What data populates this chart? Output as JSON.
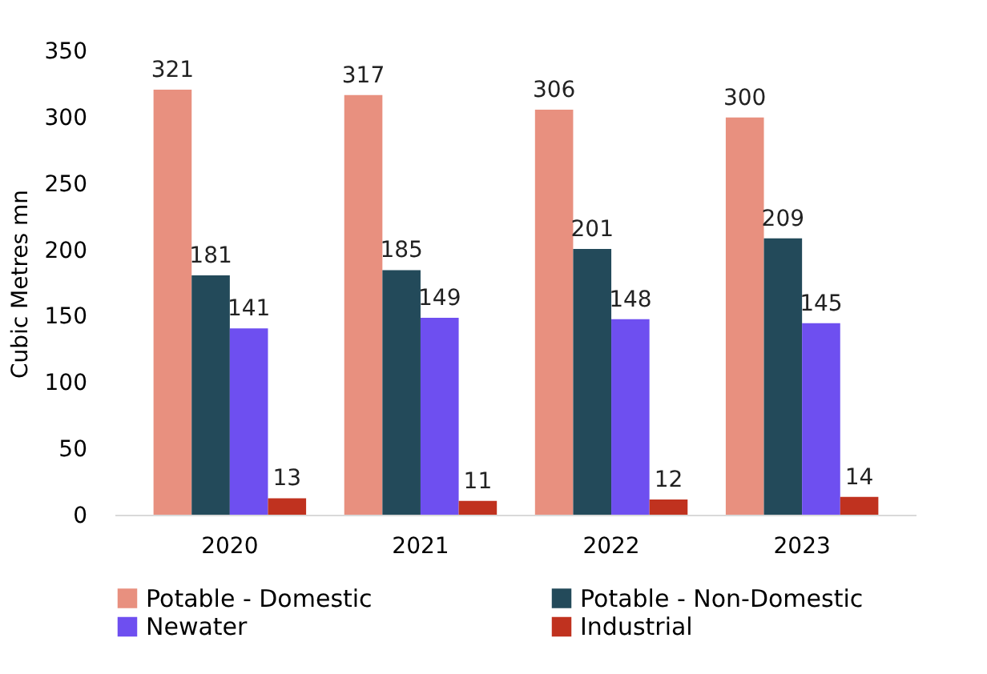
{
  "chart_data": {
    "type": "bar",
    "ylabel": "Cubic Metres mn",
    "categories": [
      "2020",
      "2021",
      "2022",
      "2023"
    ],
    "series": [
      {
        "name": "Potable - Domestic",
        "color": "#e8907f",
        "values": [
          321,
          317,
          306,
          300
        ]
      },
      {
        "name": "Potable - Non-Domestic",
        "color": "#234a5a",
        "values": [
          181,
          185,
          201,
          209
        ]
      },
      {
        "name": "Newater",
        "color": "#6e4ff0",
        "values": [
          141,
          149,
          148,
          145
        ]
      },
      {
        "name": "Industrial",
        "color": "#c0321f",
        "values": [
          13,
          11,
          12,
          14
        ]
      }
    ],
    "ylim": [
      0,
      350
    ],
    "yticks": [
      0,
      50,
      100,
      150,
      200,
      250,
      300,
      350
    ],
    "grid": false,
    "legend": "bottom",
    "data_labels": true
  }
}
